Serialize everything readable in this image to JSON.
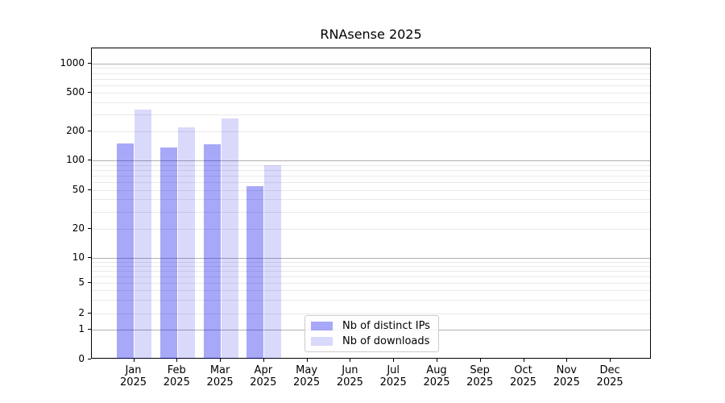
{
  "chart_data": {
    "type": "bar",
    "title": "RNAsense 2025",
    "categories": [
      "Jan 2025",
      "Feb 2025",
      "Mar 2025",
      "Apr 2025",
      "May 2025",
      "Jun 2025",
      "Jul 2025",
      "Aug 2025",
      "Sep 2025",
      "Oct 2025",
      "Nov 2025",
      "Dec 2025"
    ],
    "series": [
      {
        "name": "Nb of distinct IPs",
        "color": "rgba(0, 0, 235, 0.34)",
        "values": [
          152,
          138,
          149,
          55,
          null,
          null,
          null,
          null,
          null,
          null,
          null,
          null
        ]
      },
      {
        "name": "Nb of downloads",
        "color": "rgba(0, 0, 225, 0.15)",
        "values": [
          335,
          220,
          275,
          90,
          null,
          null,
          null,
          null,
          null,
          null,
          null,
          null
        ]
      }
    ],
    "y_ticks": [
      0,
      1,
      2,
      5,
      10,
      20,
      50,
      100,
      200,
      500,
      1000
    ],
    "yscale": "symlog",
    "ylim": [
      0,
      1400
    ],
    "grid": "horizontal major and log-minor lines",
    "legend_position": "lower center"
  }
}
